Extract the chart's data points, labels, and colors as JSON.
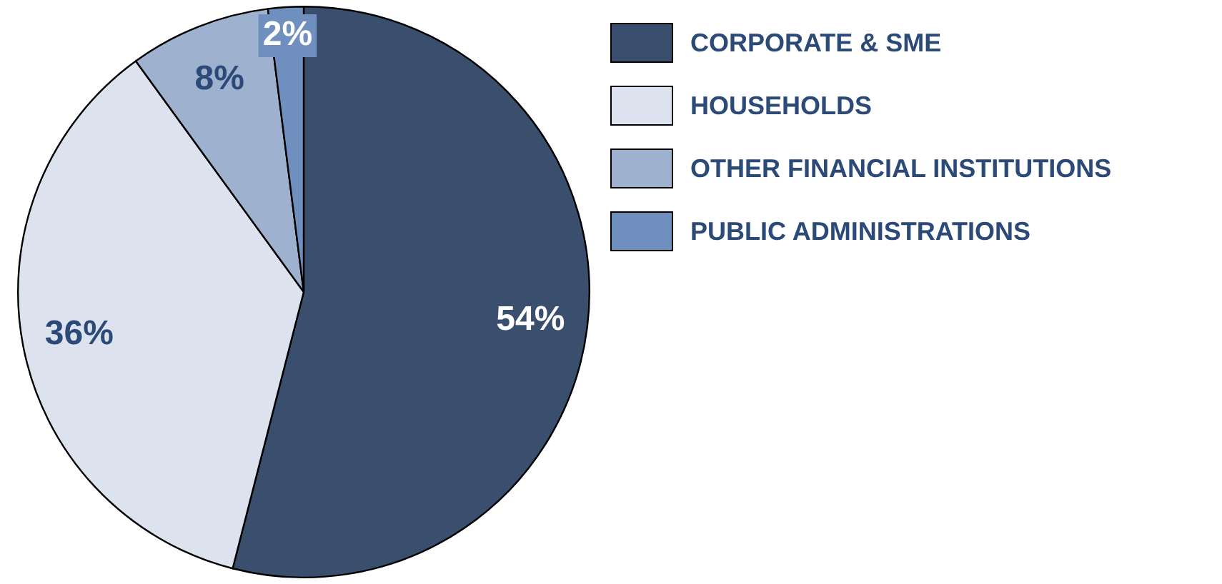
{
  "chart_data": {
    "type": "pie",
    "categories": [
      "CORPORATE & SME",
      "HOUSEHOLDS",
      "OTHER FINANCIAL INSTITUTIONS",
      "PUBLIC ADMINISTRATIONS"
    ],
    "values": [
      54,
      36,
      8,
      2
    ],
    "colors": [
      "#3a4e6e",
      "#dde3ee",
      "#9eb1cf",
      "#6f8fbf"
    ],
    "value_labels": [
      "54%",
      "36%",
      "8%",
      "2%"
    ],
    "legend": "top right"
  }
}
